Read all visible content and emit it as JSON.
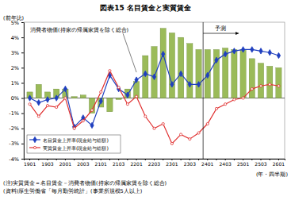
{
  "chart_data": {
    "type": "bar",
    "title": "図表15 名目賃金と実質賃金",
    "y_label": "(前年比)",
    "x_label": "(年・四半期)",
    "categories": [
      "1901",
      null,
      "1903",
      null,
      "2001",
      null,
      "2003",
      null,
      "2101",
      null,
      "2103",
      null,
      "2201",
      null,
      "2203",
      null,
      "2301",
      null,
      "2303",
      null,
      "2401",
      null,
      "2403",
      null,
      "2501",
      null,
      "2503",
      null,
      "2601"
    ],
    "series": [
      {
        "name": "消費者物価(持家の帰属家賃を除く総合)",
        "type": "bar",
        "color": "#9bbb59",
        "values": [
          0.4,
          0.9,
          0.4,
          0.6,
          0.6,
          0.1,
          0.2,
          -1.0,
          -0.6,
          -0.9,
          -0.1,
          0.6,
          1.1,
          2.8,
          3.4,
          4.6,
          4.3,
          4.0,
          3.6,
          3.2,
          3.2,
          3.2,
          3.3,
          3.2,
          3.2,
          2.6,
          2.3,
          2.1,
          2.0
        ]
      },
      {
        "name": "名目賃金上昇率(現金給与総額)",
        "type": "line",
        "color": "#1f3fbf",
        "marker": "diamond",
        "line_style": "solid",
        "values": [
          0.0,
          -0.3,
          -0.1,
          0.0,
          0.6,
          -1.9,
          -1.3,
          -1.8,
          -0.2,
          1.5,
          0.6,
          0.2,
          1.2,
          1.6,
          1.4,
          2.9,
          0.9,
          1.6,
          0.9,
          0.9,
          1.5,
          2.5,
          2.9,
          3.1,
          3.2,
          3.2,
          3.1,
          3.0,
          2.8
        ]
      },
      {
        "name": "実質賃金上昇率(現金給与総額)",
        "type": "line",
        "color": "#e03030",
        "marker": "circle",
        "line_style": "solid",
        "values": [
          -0.4,
          -1.2,
          -0.5,
          -0.6,
          0.0,
          -2.0,
          -1.5,
          -0.8,
          0.4,
          1.8,
          0.7,
          -0.4,
          0.1,
          -1.2,
          -2.0,
          -1.7,
          -3.0,
          -2.4,
          -2.7,
          -2.3,
          -1.7,
          -0.7,
          -0.4,
          -0.1,
          0.0,
          0.6,
          0.8,
          0.9,
          0.8
        ]
      }
    ],
    "ylim": [
      -4,
      5
    ],
    "yticks": [
      {
        "value": -4,
        "label": "-4%"
      },
      {
        "value": -3,
        "label": "-3%"
      },
      {
        "value": -2,
        "label": "-2%"
      },
      {
        "value": -1,
        "label": "-1%"
      },
      {
        "value": 0,
        "label": "0%"
      },
      {
        "value": 1,
        "label": "1%"
      },
      {
        "value": 2,
        "label": "2%"
      },
      {
        "value": 3,
        "label": "3%"
      },
      {
        "value": 4,
        "label": "4%"
      },
      {
        "value": 5,
        "label": "5%"
      }
    ],
    "grid": false,
    "legend": "lower left",
    "annotations": [
      {
        "text": "予測",
        "x": "2401"
      }
    ],
    "notes": [
      "(注)実質賃金＝名目賃金－消費者物価(持家の帰属家賃を除く総合)",
      "(資料)厚生労働省「毎月勤労統計」(事業所規模5人以上)"
    ]
  }
}
